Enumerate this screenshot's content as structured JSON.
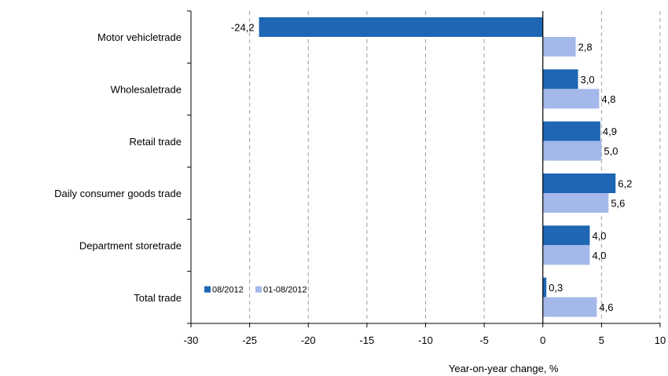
{
  "chart_data": {
    "type": "bar",
    "orientation": "horizontal",
    "categories": [
      "Motor vehicletrade",
      "Wholesaletrade",
      "Retail trade",
      "Daily consumer goods trade",
      "Department storetrade",
      "Total trade"
    ],
    "series": [
      {
        "name": "08/2012",
        "color": "#1f66b4",
        "values": [
          -24.2,
          3.0,
          4.9,
          6.2,
          4.0,
          0.3
        ],
        "labels": [
          "-24,2",
          "3,0",
          "4,9",
          "6,2",
          "4,0",
          "0,3"
        ]
      },
      {
        "name": "01-08/2012",
        "color": "#a5b8ea",
        "values": [
          2.8,
          4.8,
          5.0,
          5.6,
          4.0,
          4.6
        ],
        "labels": [
          "2,8",
          "4,8",
          "5,0",
          "5,6",
          "4,0",
          "4,6"
        ]
      }
    ],
    "xlim": [
      -30,
      10
    ],
    "xticks": [
      -30,
      -25,
      -20,
      -15,
      -10,
      -5,
      0,
      5,
      10
    ],
    "xlabel": "Year-on-year change, %",
    "ylabel": "",
    "title": "",
    "grid": "vertical dashed",
    "legend_position": "bottom-left inside plot"
  }
}
